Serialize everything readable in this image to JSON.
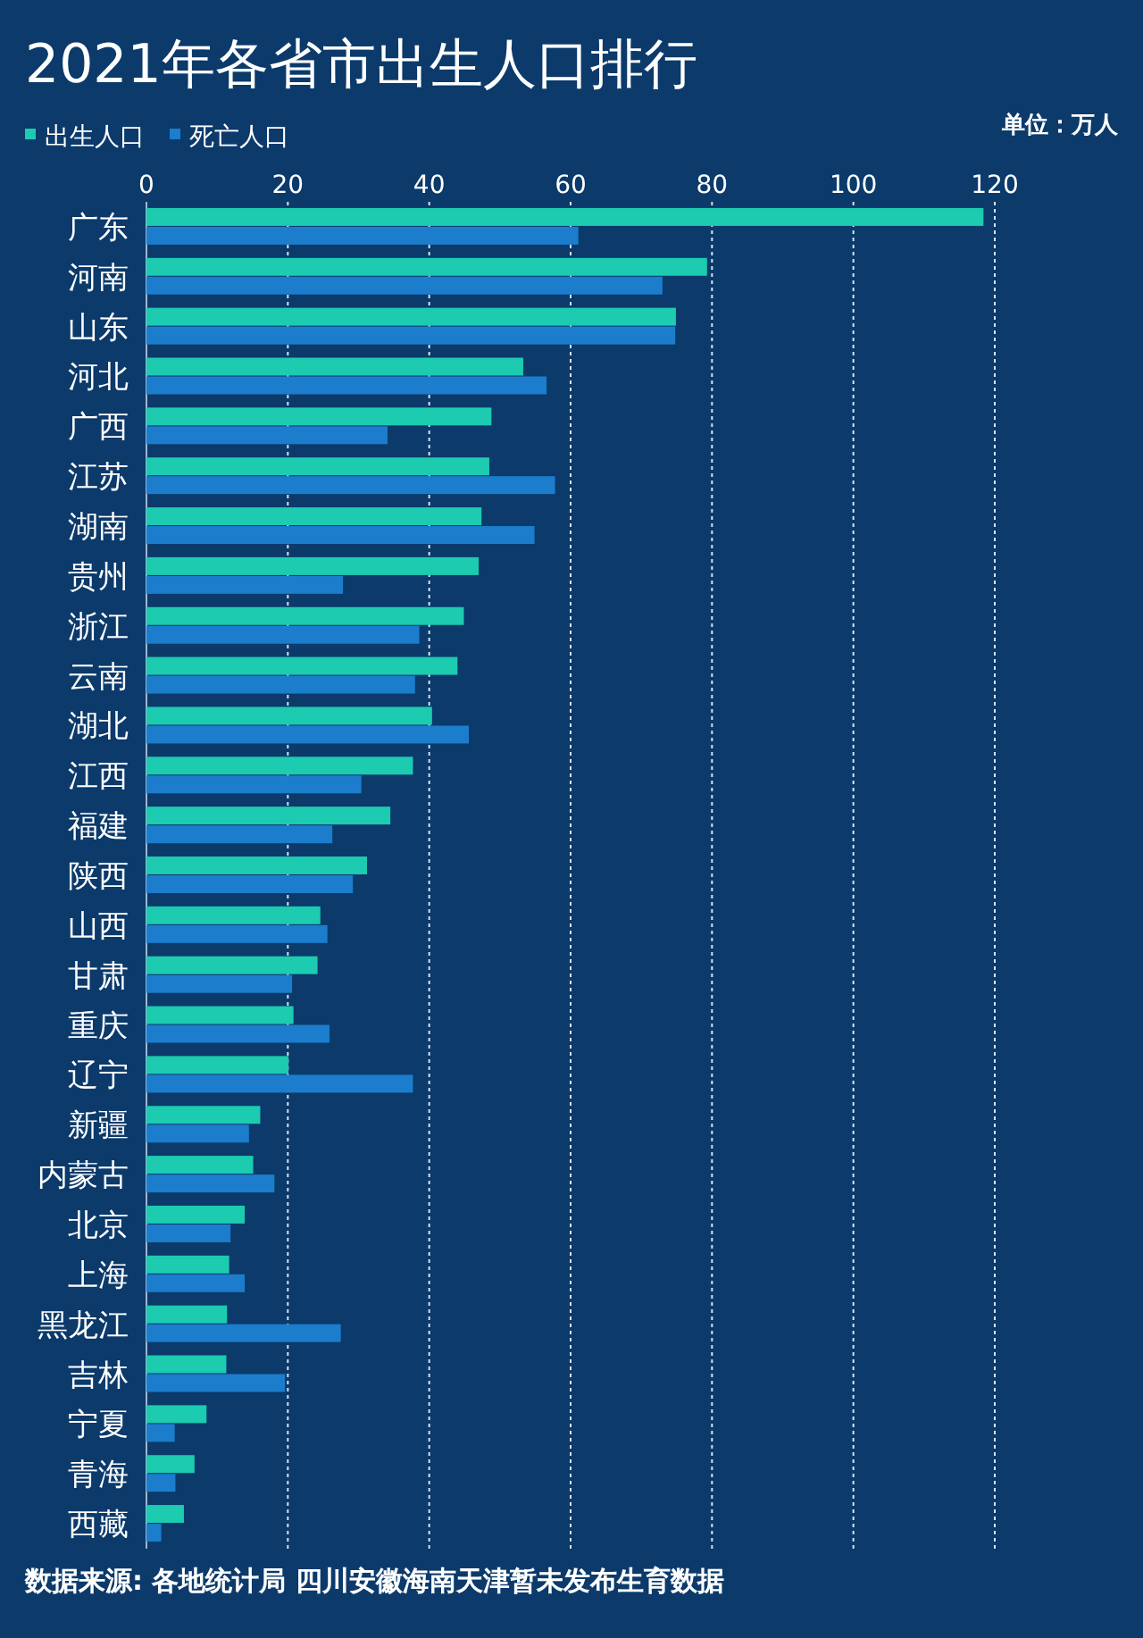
{
  "chart_data": {
    "type": "bar",
    "orientation": "horizontal",
    "title": "2021年各省市出生人口排行",
    "categories": [
      "广东",
      "河南",
      "山东",
      "河北",
      "广西",
      "江苏",
      "湖南",
      "贵州",
      "浙江",
      "云南",
      "湖北",
      "江西",
      "福建",
      "陕西",
      "山西",
      "甘肃",
      "重庆",
      "辽宁",
      "新疆",
      "内蒙古",
      "北京",
      "上海",
      "黑龙江",
      "吉林",
      "宁夏",
      "青海",
      "西藏"
    ],
    "series": [
      {
        "name": "出生人口",
        "color": "#1ccbb0",
        "values": [
          118.4,
          79.3,
          74.9,
          53.3,
          48.8,
          48.5,
          47.4,
          47.0,
          44.9,
          44.0,
          40.4,
          37.7,
          34.5,
          31.2,
          24.6,
          24.2,
          20.8,
          20.1,
          16.1,
          15.1,
          13.9,
          11.7,
          11.4,
          11.3,
          8.5,
          6.8,
          5.3
        ]
      },
      {
        "name": "死亡人口",
        "color": "#1b7dcc",
        "values": [
          61.1,
          73.0,
          74.8,
          56.6,
          34.1,
          57.8,
          54.9,
          27.8,
          38.6,
          38.0,
          45.6,
          30.4,
          26.3,
          29.2,
          25.6,
          20.6,
          25.9,
          37.7,
          14.5,
          18.1,
          11.9,
          13.9,
          27.5,
          19.6,
          4.0,
          4.1,
          2.1
        ]
      }
    ],
    "xlim": [
      0,
      120
    ],
    "xticks": [
      0,
      20,
      40,
      60,
      80,
      100,
      120
    ],
    "grid": "x",
    "legend": "top left",
    "annotations": [
      "单位：万人",
      "数据来源: 各地统计局 四川安徽海南天津暂未发布生育数据"
    ]
  }
}
